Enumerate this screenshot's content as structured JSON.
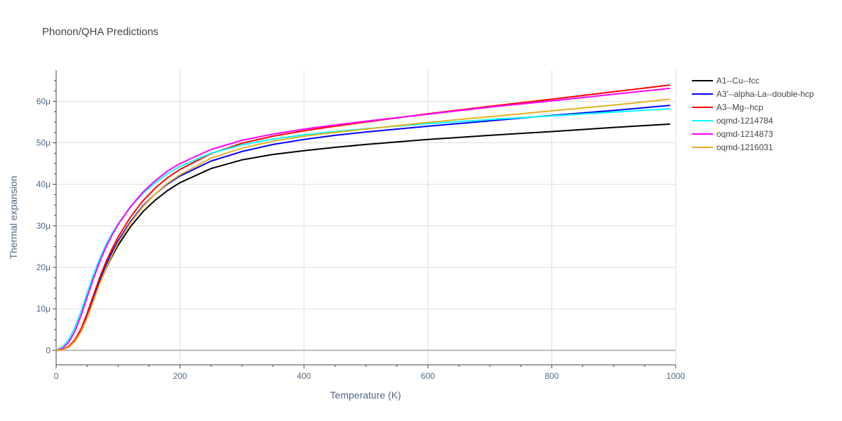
{
  "chart_data": {
    "type": "line",
    "title": "Phonon/QHA Predictions",
    "xlabel": "Temperature (K)",
    "ylabel": "Thermal expansion",
    "xlim": [
      0,
      1000
    ],
    "ylim": [
      -3.5,
      67.5
    ],
    "x_ticks": [
      {
        "value": 0,
        "label": "0"
      },
      {
        "value": 200,
        "label": "200"
      },
      {
        "value": 400,
        "label": "400"
      },
      {
        "value": 600,
        "label": "600"
      },
      {
        "value": 800,
        "label": "800"
      },
      {
        "value": 1000,
        "label": "1000"
      }
    ],
    "y_ticks": [
      {
        "value": 0,
        "label": "0"
      },
      {
        "value": 10,
        "label": "10μ"
      },
      {
        "value": 20,
        "label": "20μ"
      },
      {
        "value": 30,
        "label": "30μ"
      },
      {
        "value": 40,
        "label": "40μ"
      },
      {
        "value": 50,
        "label": "50μ"
      },
      {
        "value": 60,
        "label": "60μ"
      }
    ],
    "y_unit": "μ (×1e-6 /K)",
    "grid": true,
    "legend_position": "right",
    "x": [
      0,
      10,
      20,
      30,
      40,
      50,
      60,
      70,
      80,
      90,
      100,
      120,
      140,
      160,
      180,
      200,
      250,
      300,
      350,
      400,
      450,
      500,
      600,
      700,
      800,
      900,
      990
    ],
    "series": [
      {
        "name": "A1--Cu--fcc",
        "color": "#000000",
        "values": [
          0,
          0.1,
          0.8,
          2.2,
          4.5,
          8.0,
          12.0,
          16.0,
          19.5,
          22.6,
          25.3,
          29.8,
          33.4,
          36.2,
          38.5,
          40.4,
          43.8,
          45.9,
          47.2,
          48.1,
          48.9,
          49.6,
          50.8,
          51.8,
          52.7,
          53.7,
          54.5
        ]
      },
      {
        "name": "A3'--alpha-La--double-hcp",
        "color": "#0000ff",
        "values": [
          0,
          0.1,
          0.9,
          2.4,
          4.9,
          8.5,
          12.7,
          16.8,
          20.4,
          23.6,
          26.4,
          31.0,
          34.8,
          37.7,
          40.1,
          42.0,
          45.6,
          47.9,
          49.6,
          50.8,
          51.8,
          52.6,
          54.0,
          55.3,
          56.6,
          57.8,
          59.0
        ]
      },
      {
        "name": "A3--Mg--hcp",
        "color": "#ff0000",
        "values": [
          0,
          0.1,
          0.9,
          2.5,
          5.1,
          8.9,
          13.2,
          17.4,
          21.1,
          24.4,
          27.3,
          32.1,
          36.0,
          39.1,
          41.6,
          43.6,
          47.4,
          49.9,
          51.6,
          52.9,
          54.0,
          55.0,
          57.0,
          58.8,
          60.5,
          62.3,
          63.9
        ]
      },
      {
        "name": "oqmd-1214784",
        "color": "#00ffff",
        "values": [
          0,
          0.8,
          2.5,
          5.4,
          9.3,
          13.8,
          18.1,
          22.0,
          25.3,
          28.1,
          30.5,
          34.5,
          37.8,
          40.4,
          42.6,
          44.3,
          47.5,
          49.5,
          50.9,
          51.9,
          52.7,
          53.4,
          54.6,
          55.6,
          56.5,
          57.4,
          58.2
        ]
      },
      {
        "name": "oqmd-1214873",
        "color": "#ff00ff",
        "values": [
          0,
          0.4,
          1.9,
          4.5,
          8.3,
          12.8,
          17.2,
          21.2,
          24.7,
          27.7,
          30.3,
          34.6,
          38.1,
          40.9,
          43.2,
          45.0,
          48.4,
          50.6,
          52.1,
          53.3,
          54.3,
          55.2,
          56.9,
          58.6,
          60.1,
          61.7,
          63.1
        ]
      },
      {
        "name": "oqmd-1216031",
        "color": "#e6b020",
        "values": [
          0,
          0.1,
          0.7,
          2.1,
          4.4,
          7.8,
          11.8,
          15.9,
          19.6,
          22.9,
          25.9,
          30.7,
          34.6,
          37.7,
          40.3,
          42.3,
          46.3,
          48.7,
          50.4,
          51.6,
          52.5,
          53.3,
          54.9,
          56.3,
          57.7,
          59.1,
          60.5
        ]
      }
    ]
  }
}
